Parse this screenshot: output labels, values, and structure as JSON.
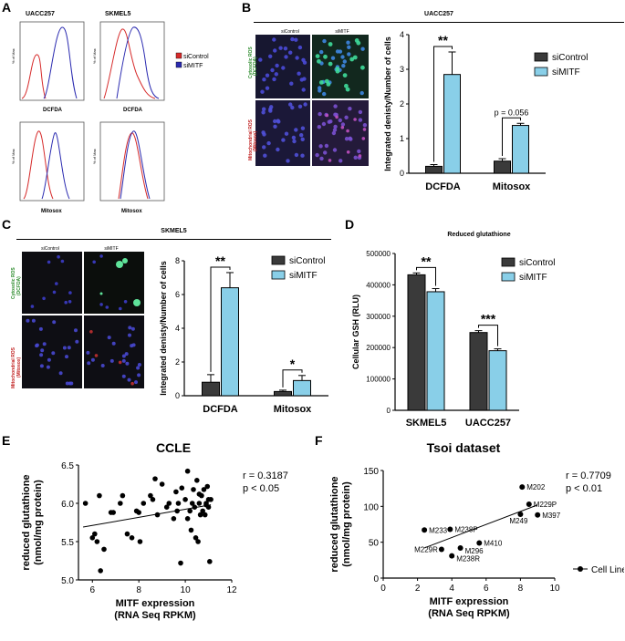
{
  "panels": {
    "A": "A",
    "B": "B",
    "C": "C",
    "D": "D",
    "E": "E",
    "F": "F"
  },
  "colors": {
    "siControl_dark": "#3a3a3a",
    "siMITF_light": "#89cfe8",
    "flow_red": "#d62a2a",
    "flow_blue": "#2a2ab0"
  },
  "panelA": {
    "col1": "UACC257",
    "col2": "SKMEL5",
    "y_tick_label": "% of Max",
    "xlabel_top": "DCFDA",
    "xlabel_bottom": "Mitosox",
    "legend": [
      {
        "name": "siControl",
        "color": "#d62a2a"
      },
      {
        "name": "siMITF",
        "color": "#2a2ab0"
      }
    ]
  },
  "panelB": {
    "title": "UACC257",
    "img_col1": "siControl",
    "img_col2": "siMITF",
    "row1_line1": "Cytosolic ROS",
    "row1_line2": "(DCFDA)",
    "row2_line1": "Mitochondrial ROS",
    "row2_line2": "(Mitosox)"
  },
  "panelC": {
    "title": "SKMEL5",
    "img_col1": "siControl",
    "img_col2": "siMITF",
    "row1_line1": "Cytosolic ROS",
    "row1_line2": "(DCFDA)",
    "row2_line1": "Mitochondrial ROS",
    "row2_line2": "(Mitosox)"
  },
  "panelE": {
    "title": "CCLE",
    "stat1": "r = 0.3187",
    "stat2": "p < 0.05"
  },
  "panelF": {
    "title": "Tsoi dataset",
    "stat1": "r = 0.7709",
    "stat2": "p < 0.01",
    "legend": "Cell Line"
  },
  "chart_data": [
    {
      "id": "B",
      "type": "bar",
      "categories": [
        "DCFDA",
        "Mitosox"
      ],
      "series": [
        {
          "name": "siControl",
          "values": [
            0.2,
            0.35
          ],
          "err": [
            0.05,
            0.07
          ],
          "color": "#3a3a3a"
        },
        {
          "name": "siMITF",
          "values": [
            2.85,
            1.38
          ],
          "err": [
            0.65,
            0.06
          ],
          "color": "#89cfe8"
        }
      ],
      "ylabel": "Integrated denisty/Number of cells",
      "ylim": [
        0,
        4
      ],
      "yticks": [
        0,
        1,
        2,
        3,
        4
      ],
      "sig": [
        {
          "label": "**"
        },
        {
          "label": "p = 0.056"
        }
      ]
    },
    {
      "id": "C",
      "type": "bar",
      "categories": [
        "DCFDA",
        "Mitosox"
      ],
      "series": [
        {
          "name": "siControl",
          "values": [
            0.8,
            0.25
          ],
          "err": [
            0.45,
            0.08
          ],
          "color": "#3a3a3a"
        },
        {
          "name": "siMITF",
          "values": [
            6.4,
            0.9
          ],
          "err": [
            0.9,
            0.3
          ],
          "color": "#89cfe8"
        }
      ],
      "ylabel": "Integrated denisty/Number of cells",
      "ylim": [
        0,
        8
      ],
      "yticks": [
        0,
        2,
        4,
        6,
        8
      ],
      "sig": [
        {
          "label": "**"
        },
        {
          "label": "*"
        }
      ]
    },
    {
      "id": "D",
      "type": "bar",
      "title": "Reduced glutathione",
      "categories": [
        "SKMEL5",
        "UACC257"
      ],
      "series": [
        {
          "name": "siControl",
          "values": [
            432000,
            248000
          ],
          "err": [
            6000,
            6000
          ],
          "color": "#3a3a3a"
        },
        {
          "name": "siMITF",
          "values": [
            378000,
            190000
          ],
          "err": [
            10000,
            6000
          ],
          "color": "#89cfe8"
        }
      ],
      "ylabel": "Cellular GSH (RLU)",
      "ylim": [
        0,
        500000
      ],
      "yticks": [
        0,
        100000,
        200000,
        300000,
        400000,
        500000
      ],
      "ytick_labels": [
        "0",
        "100000",
        "200000",
        "300000",
        "400000",
        "500000"
      ],
      "sig": [
        {
          "label": "**"
        },
        {
          "label": "***"
        }
      ]
    },
    {
      "id": "E",
      "type": "scatter",
      "xlabel": "MITF expression (RNA Seq RPKM)",
      "xlabel_line1": "MITF expression",
      "xlabel_line2": "(RNA Seq RPKM)",
      "ylabel_line1": "reduced glutathione",
      "ylabel_line2": "(nmol/mg protein)",
      "xlim": [
        5.4,
        12
      ],
      "ylim": [
        5.0,
        6.5
      ],
      "xticks": [
        6,
        8,
        10,
        12
      ],
      "yticks": [
        5.0,
        5.5,
        6.0,
        6.5
      ],
      "ytick_labels": [
        "5.0",
        "5.5",
        "6.0",
        "6.5"
      ],
      "fit": {
        "x": [
          5.6,
          11.1
        ],
        "y": [
          5.69,
          5.98
        ]
      },
      "points": [
        [
          5.7,
          6.0
        ],
        [
          6.0,
          5.55
        ],
        [
          6.1,
          5.6
        ],
        [
          6.2,
          5.5
        ],
        [
          6.3,
          6.1
        ],
        [
          6.35,
          5.12
        ],
        [
          6.5,
          5.4
        ],
        [
          6.8,
          5.88
        ],
        [
          6.9,
          5.88
        ],
        [
          7.2,
          6.0
        ],
        [
          7.3,
          6.1
        ],
        [
          7.5,
          5.6
        ],
        [
          7.7,
          5.55
        ],
        [
          7.9,
          5.9
        ],
        [
          8.0,
          5.88
        ],
        [
          8.05,
          5.5
        ],
        [
          8.2,
          6.0
        ],
        [
          8.5,
          6.1
        ],
        [
          8.6,
          6.05
        ],
        [
          8.7,
          6.32
        ],
        [
          8.8,
          5.85
        ],
        [
          9.0,
          6.25
        ],
        [
          9.2,
          5.95
        ],
        [
          9.3,
          6.0
        ],
        [
          9.5,
          5.8
        ],
        [
          9.6,
          6.15
        ],
        [
          9.65,
          5.9
        ],
        [
          9.7,
          6.0
        ],
        [
          9.8,
          5.22
        ],
        [
          9.85,
          6.2
        ],
        [
          10.0,
          6.05
        ],
        [
          10.1,
          6.42
        ],
        [
          10.1,
          5.8
        ],
        [
          10.2,
          5.9
        ],
        [
          10.25,
          5.65
        ],
        [
          10.3,
          6.0
        ],
        [
          10.35,
          6.18
        ],
        [
          10.4,
          5.95
        ],
        [
          10.45,
          5.55
        ],
        [
          10.5,
          6.3
        ],
        [
          10.55,
          5.5
        ],
        [
          10.6,
          6.0
        ],
        [
          10.65,
          5.85
        ],
        [
          10.7,
          6.1
        ],
        [
          10.75,
          5.9
        ],
        [
          10.8,
          6.18
        ],
        [
          10.85,
          5.85
        ],
        [
          10.9,
          5.98
        ],
        [
          10.95,
          6.22
        ],
        [
          11.0,
          5.95
        ],
        [
          11.0,
          6.05
        ],
        [
          11.05,
          5.24
        ],
        [
          10.6,
          6.12
        ],
        [
          10.9,
          6.0
        ],
        [
          11.1,
          6.05
        ]
      ]
    },
    {
      "id": "F",
      "type": "scatter",
      "xlabel": "MITF expression (RNA Seq RPKM)",
      "xlabel_line1": "MITF expression",
      "xlabel_line2": "(RNA Seq RPKM)",
      "ylabel_line1": "reduced glutathione",
      "ylabel_line2": "(nmol/mg protein)",
      "xlim": [
        0,
        10
      ],
      "ylim": [
        0,
        150
      ],
      "xticks": [
        0,
        2,
        4,
        6,
        8,
        10
      ],
      "yticks": [
        0,
        50,
        100,
        150
      ],
      "fit": {
        "x": [
          2.4,
          9.0
        ],
        "y": [
          42,
          102
        ]
      },
      "legend": "Cell Line",
      "points": [
        {
          "label": "M202",
          "x": 8.1,
          "y": 127
        },
        {
          "label": "M229P",
          "x": 8.5,
          "y": 103
        },
        {
          "label": "M249",
          "x": 8.0,
          "y": 89
        },
        {
          "label": "M397",
          "x": 9.0,
          "y": 88
        },
        {
          "label": "M233",
          "x": 2.4,
          "y": 67
        },
        {
          "label": "M238P",
          "x": 3.9,
          "y": 68
        },
        {
          "label": "M410",
          "x": 5.6,
          "y": 49
        },
        {
          "label": "M229R",
          "x": 3.4,
          "y": 40
        },
        {
          "label": "M296",
          "x": 4.5,
          "y": 42
        },
        {
          "label": "M238R",
          "x": 4.0,
          "y": 31
        }
      ]
    }
  ]
}
